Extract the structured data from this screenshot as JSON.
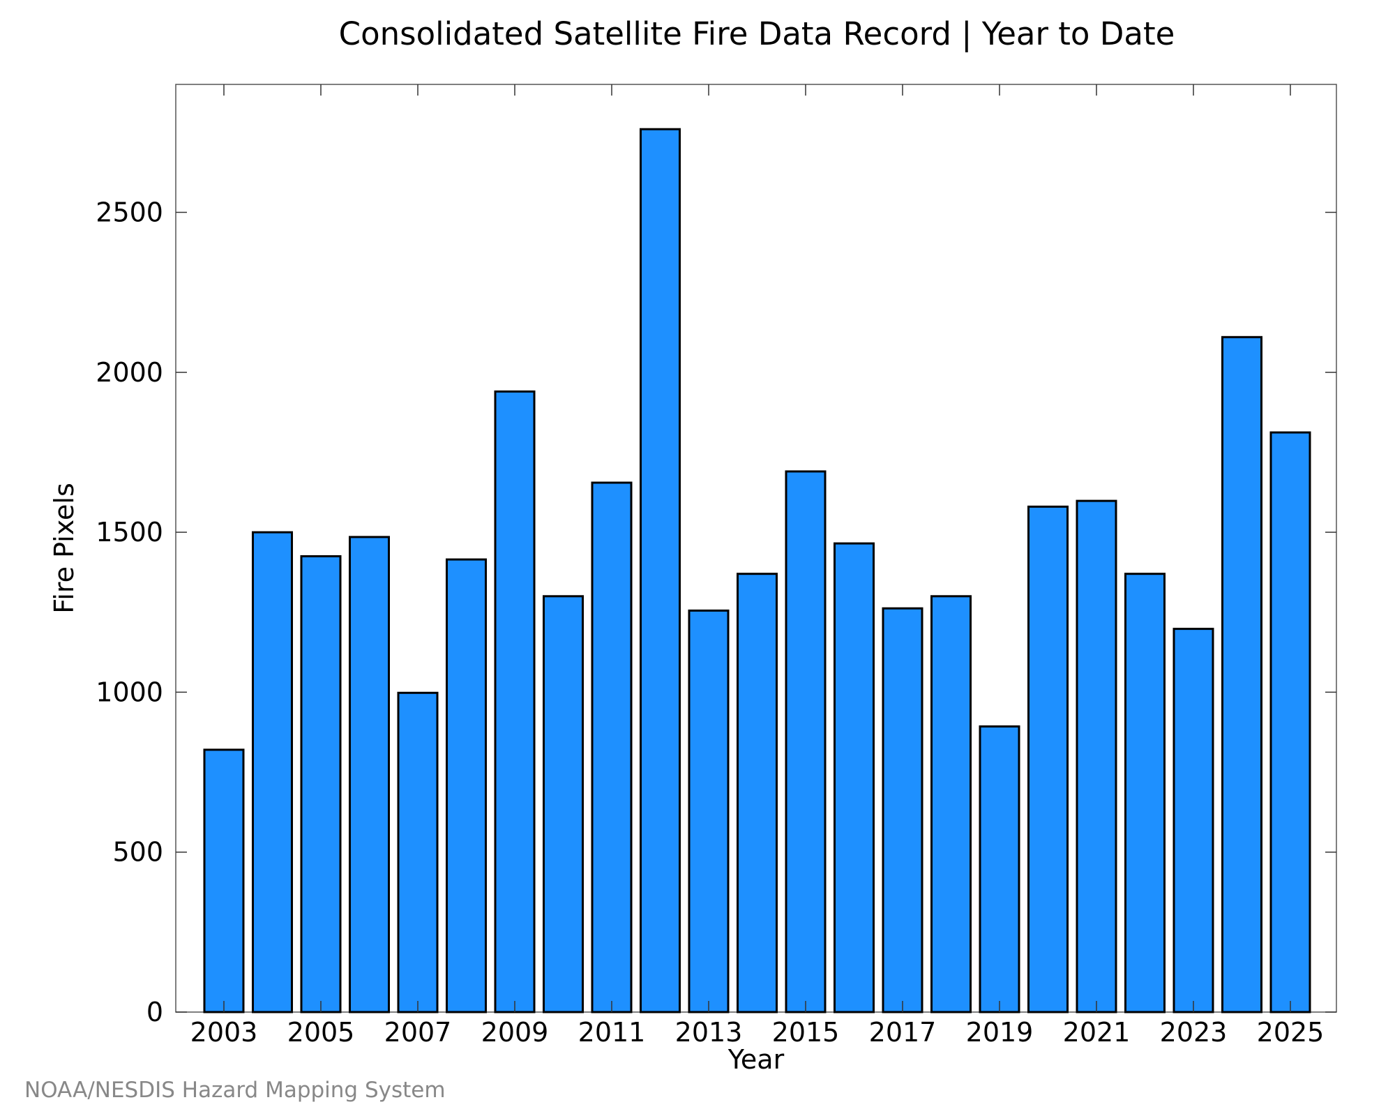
{
  "chart_data": {
    "type": "bar",
    "title": "Consolidated Satellite Fire Data Record | Year to Date",
    "xlabel": "Year",
    "ylabel": "Fire Pixels",
    "categories": [
      "2003",
      "2004",
      "2005",
      "2006",
      "2007",
      "2008",
      "2009",
      "2010",
      "2011",
      "2012",
      "2013",
      "2014",
      "2015",
      "2016",
      "2017",
      "2018",
      "2019",
      "2020",
      "2021",
      "2022",
      "2023",
      "2024",
      "2025"
    ],
    "values": [
      820,
      1500,
      1425,
      1485,
      998,
      1415,
      1940,
      1300,
      1655,
      2760,
      1255,
      1370,
      1690,
      1465,
      1262,
      1300,
      893,
      1580,
      1598,
      1370,
      1198,
      2110,
      1812
    ],
    "xtick_labels": [
      "2003",
      "2005",
      "2007",
      "2009",
      "2011",
      "2013",
      "2015",
      "2017",
      "2019",
      "2021",
      "2023",
      "2025"
    ],
    "ylim": [
      0,
      2900
    ],
    "yticks": [
      0,
      500,
      1000,
      1500,
      2000,
      2500
    ],
    "bar_color": "#1E90FF",
    "grid": false,
    "legend": "none"
  },
  "credit": "NOAA/NESDIS Hazard Mapping System"
}
